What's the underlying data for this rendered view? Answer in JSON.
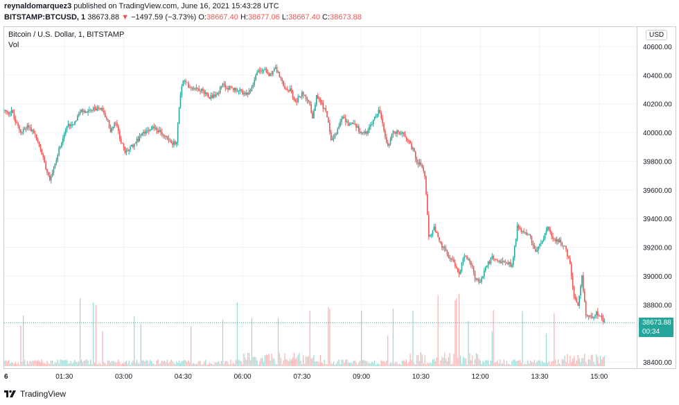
{
  "header": {
    "publisher": "reynaldomarquez3",
    "published_text": " published on TradingView.com, June 16, 2021 15:43:28 UTC",
    "symbol": "BITSTAMP:BTCUSD, 1",
    "last": "38673.88",
    "change": "−1497.59 (−3.73%)",
    "o_label": "O:",
    "o_value": "38667.40",
    "h_label": "H:",
    "h_value": "38677.06",
    "l_label": "L:",
    "l_value": "38667.40",
    "c_label": "C:",
    "c_value": "38673.88"
  },
  "legend": {
    "title": "Bitcoin / U.S. Dollar, 1, BITSTAMP",
    "volume_label": "Vol"
  },
  "currency_button": "USD",
  "price_tag": {
    "price": "38673.88",
    "countdown": "00:34"
  },
  "footer": {
    "brand": "TradingView"
  },
  "colors": {
    "up": "#26a69a",
    "down": "#ef5350",
    "grid": "#f0f3fa"
  },
  "chart_data": {
    "type": "candlestick",
    "title": "Bitcoin / U.S. Dollar, 1, BITSTAMP",
    "y_ticks": [
      40600,
      40400,
      40200,
      40000,
      39800,
      39600,
      39400,
      39200,
      39000,
      38800,
      38400
    ],
    "y_tick_labels": [
      "40600.00",
      "40400.00",
      "40200.00",
      "40000.00",
      "39800.00",
      "39600.00",
      "39400.00",
      "39200.00",
      "39000.00",
      "38800.00",
      "38400.00"
    ],
    "ylim": [
      38350,
      40650
    ],
    "x_tick_labels": [
      "6",
      "01:30",
      "03:00",
      "04:30",
      "06:00",
      "07:30",
      "09:00",
      "10:30",
      "12:00",
      "13:30",
      "15:00"
    ],
    "x_tick_minutes": [
      0,
      90,
      180,
      270,
      360,
      450,
      540,
      630,
      720,
      810,
      900
    ],
    "x_range_minutes": [
      0,
      945
    ],
    "last_price": 38673.88,
    "price_path": [
      [
        0,
        40150
      ],
      [
        5,
        40130
      ],
      [
        10,
        40160
      ],
      [
        15,
        40080
      ],
      [
        25,
        40000
      ],
      [
        35,
        40050
      ],
      [
        45,
        39990
      ],
      [
        55,
        39870
      ],
      [
        62,
        39760
      ],
      [
        68,
        39680
      ],
      [
        75,
        39760
      ],
      [
        85,
        39930
      ],
      [
        95,
        40050
      ],
      [
        105,
        40070
      ],
      [
        115,
        40150
      ],
      [
        125,
        40140
      ],
      [
        135,
        40160
      ],
      [
        145,
        40170
      ],
      [
        155,
        40090
      ],
      [
        160,
        40010
      ],
      [
        168,
        40070
      ],
      [
        175,
        39950
      ],
      [
        182,
        39860
      ],
      [
        192,
        39900
      ],
      [
        205,
        39970
      ],
      [
        215,
        40020
      ],
      [
        225,
        40040
      ],
      [
        235,
        40000
      ],
      [
        245,
        39970
      ],
      [
        252,
        39930
      ],
      [
        260,
        39920
      ],
      [
        265,
        40250
      ],
      [
        270,
        40360
      ],
      [
        280,
        40320
      ],
      [
        290,
        40310
      ],
      [
        300,
        40290
      ],
      [
        310,
        40250
      ],
      [
        320,
        40260
      ],
      [
        330,
        40330
      ],
      [
        340,
        40310
      ],
      [
        350,
        40300
      ],
      [
        360,
        40280
      ],
      [
        368,
        40260
      ],
      [
        375,
        40330
      ],
      [
        382,
        40420
      ],
      [
        392,
        40440
      ],
      [
        400,
        40400
      ],
      [
        410,
        40450
      ],
      [
        418,
        40370
      ],
      [
        425,
        40290
      ],
      [
        432,
        40300
      ],
      [
        440,
        40210
      ],
      [
        450,
        40270
      ],
      [
        460,
        40230
      ],
      [
        466,
        40100
      ],
      [
        472,
        40250
      ],
      [
        480,
        40200
      ],
      [
        488,
        40120
      ],
      [
        494,
        39960
      ],
      [
        502,
        40000
      ],
      [
        510,
        40110
      ],
      [
        520,
        40060
      ],
      [
        530,
        40060
      ],
      [
        540,
        39990
      ],
      [
        550,
        40010
      ],
      [
        560,
        40100
      ],
      [
        567,
        40160
      ],
      [
        572,
        40050
      ],
      [
        580,
        39900
      ],
      [
        588,
        40000
      ],
      [
        598,
        40000
      ],
      [
        608,
        39970
      ],
      [
        618,
        39880
      ],
      [
        624,
        39800
      ],
      [
        630,
        39780
      ],
      [
        636,
        39700
      ],
      [
        642,
        39270
      ],
      [
        650,
        39330
      ],
      [
        660,
        39220
      ],
      [
        670,
        39150
      ],
      [
        680,
        39100
      ],
      [
        688,
        39010
      ],
      [
        695,
        39150
      ],
      [
        705,
        39100
      ],
      [
        712,
        38990
      ],
      [
        720,
        38950
      ],
      [
        728,
        39060
      ],
      [
        738,
        39130
      ],
      [
        748,
        39100
      ],
      [
        758,
        39110
      ],
      [
        768,
        39070
      ],
      [
        776,
        39340
      ],
      [
        784,
        39310
      ],
      [
        794,
        39290
      ],
      [
        804,
        39170
      ],
      [
        814,
        39240
      ],
      [
        822,
        39340
      ],
      [
        830,
        39250
      ],
      [
        840,
        39250
      ],
      [
        848,
        39200
      ],
      [
        856,
        39080
      ],
      [
        862,
        38850
      ],
      [
        868,
        38780
      ],
      [
        874,
        38990
      ],
      [
        880,
        38730
      ],
      [
        888,
        38710
      ],
      [
        896,
        38750
      ],
      [
        903,
        38700
      ],
      [
        908,
        38674
      ]
    ]
  }
}
